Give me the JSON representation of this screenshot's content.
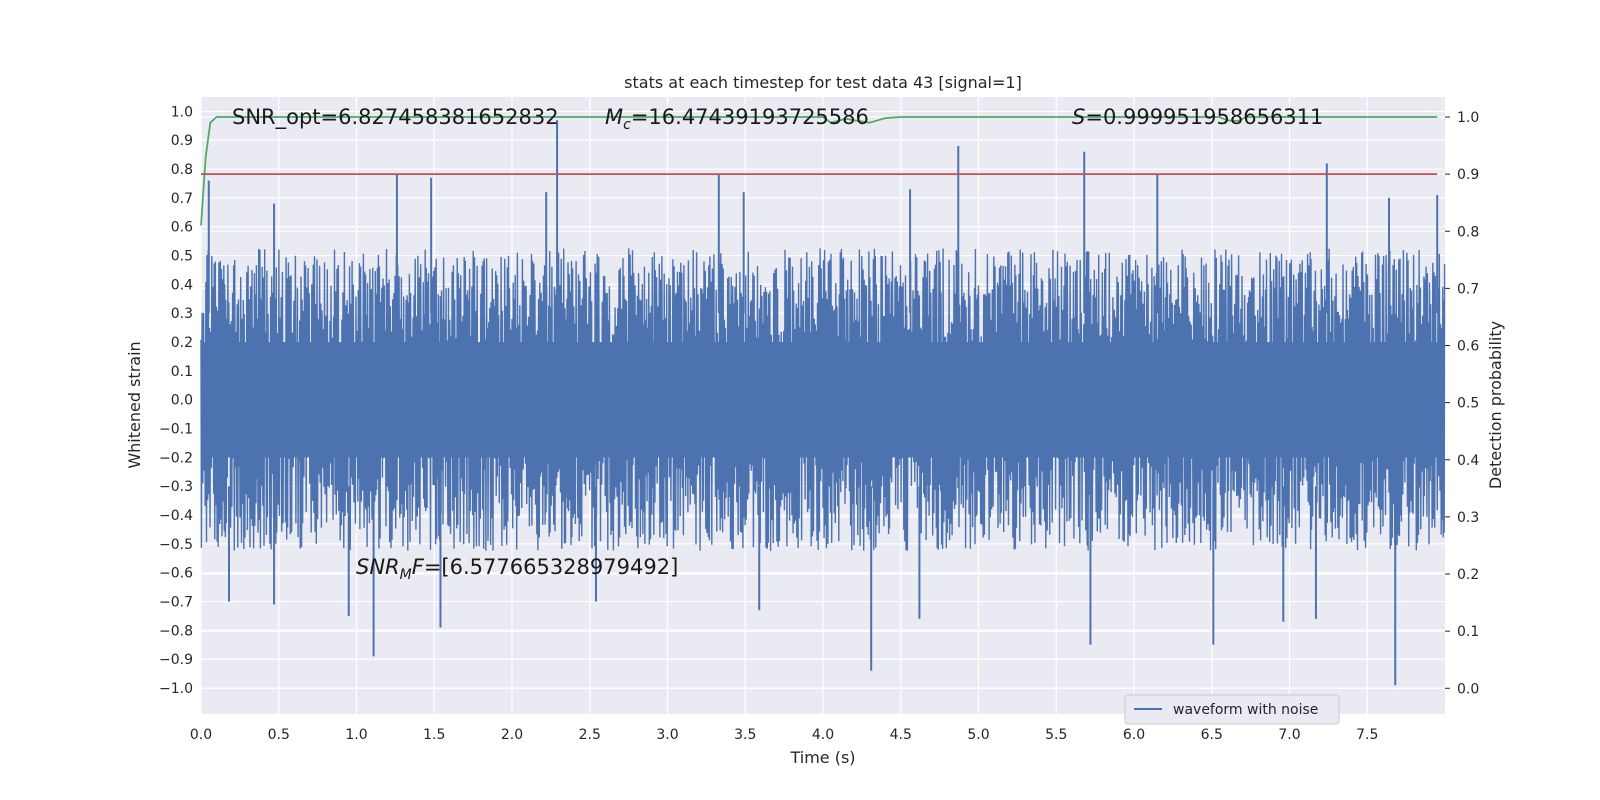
{
  "chart_data": {
    "type": "line",
    "title": "stats at each timestep for test data 43 [signal=1]",
    "xlabel": "Time (s)",
    "ylabel": "Whitened strain",
    "y2label": "Detection probability",
    "xlim": [
      0,
      8.0
    ],
    "ylim": [
      -1.09,
      1.05
    ],
    "y2lim": [
      -0.045,
      1.035
    ],
    "xticks": [
      "0.0",
      "0.5",
      "1.0",
      "1.5",
      "2.0",
      "2.5",
      "3.0",
      "3.5",
      "4.0",
      "4.5",
      "5.0",
      "5.5",
      "6.0",
      "6.5",
      "7.0",
      "7.5"
    ],
    "yticks": [
      "1.0",
      "0.9",
      "0.8",
      "0.7",
      "0.6",
      "0.5",
      "0.4",
      "0.3",
      "0.2",
      "0.1",
      "0.0",
      "−0.1",
      "−0.2",
      "−0.3",
      "−0.4",
      "−0.5",
      "−0.6",
      "−0.7",
      "−0.8",
      "−0.9",
      "−1.0"
    ],
    "y2ticks": [
      "1.0",
      "0.9",
      "0.8",
      "0.7",
      "0.6",
      "0.5",
      "0.4",
      "0.3",
      "0.2",
      "0.1",
      "0.0"
    ],
    "grid": true,
    "legend_position": "bottom-right",
    "series": [
      {
        "name": "waveform with noise",
        "axis": "left",
        "color": "#4c72b0",
        "envelope": {
          "typical_upper": 0.42,
          "typical_lower": -0.42,
          "x_start": 0.0,
          "x_end": 8.0
        },
        "peaks": [
          {
            "x": 0.05,
            "y": 0.76
          },
          {
            "x": 0.47,
            "y": 0.68
          },
          {
            "x": 1.26,
            "y": 0.78
          },
          {
            "x": 1.48,
            "y": 0.77
          },
          {
            "x": 2.29,
            "y": 0.97
          },
          {
            "x": 2.22,
            "y": 0.72
          },
          {
            "x": 3.33,
            "y": 0.78
          },
          {
            "x": 3.49,
            "y": 0.72
          },
          {
            "x": 4.56,
            "y": 0.73
          },
          {
            "x": 4.87,
            "y": 0.88
          },
          {
            "x": 5.68,
            "y": 0.86
          },
          {
            "x": 6.15,
            "y": 0.78
          },
          {
            "x": 7.24,
            "y": 0.82
          },
          {
            "x": 7.64,
            "y": 0.7
          },
          {
            "x": 7.95,
            "y": 0.71
          }
        ],
        "troughs": [
          {
            "x": 0.18,
            "y": -0.7
          },
          {
            "x": 0.47,
            "y": -0.71
          },
          {
            "x": 0.95,
            "y": -0.75
          },
          {
            "x": 1.11,
            "y": -0.89
          },
          {
            "x": 1.54,
            "y": -0.79
          },
          {
            "x": 2.54,
            "y": -0.7
          },
          {
            "x": 3.59,
            "y": -0.73
          },
          {
            "x": 4.31,
            "y": -0.94
          },
          {
            "x": 4.62,
            "y": -0.76
          },
          {
            "x": 5.72,
            "y": -0.85
          },
          {
            "x": 6.51,
            "y": -0.85
          },
          {
            "x": 6.96,
            "y": -0.77
          },
          {
            "x": 7.17,
            "y": -0.76
          },
          {
            "x": 7.68,
            "y": -0.99
          }
        ]
      },
      {
        "name": "",
        "axis": "right",
        "color": "#55a868",
        "x": [
          0.0,
          0.03,
          0.06,
          0.1,
          0.15,
          4.0,
          4.05,
          4.15,
          4.2,
          4.3,
          4.4,
          4.5,
          6.55,
          6.6,
          6.67,
          6.72,
          6.8,
          7.95
        ],
        "y": [
          0.81,
          0.93,
          0.99,
          1.0,
          1.0,
          1.0,
          0.99,
          0.997,
          0.994,
          0.99,
          0.998,
          1.0,
          1.0,
          0.994,
          0.993,
          1.0,
          1.0,
          1.0
        ]
      },
      {
        "name": "",
        "axis": "right",
        "color": "#c44e52",
        "x": [
          0.0,
          7.95
        ],
        "y": [
          0.9,
          0.9
        ]
      }
    ],
    "annotations": {
      "snr_opt": "SNR_opt=6.827458381652832",
      "mc_symbol": "M",
      "mc_sub": "c",
      "mc_value": "=16.47439193725586",
      "s_symbol": "S",
      "s_value": "=0.999951958656311",
      "snr_mf_symbol": "SNR",
      "snr_mf_sub": "M",
      "snr_mf_symbol2": "F",
      "snr_mf_value": "=[6.577665328979492]"
    }
  },
  "colors": {
    "plot_background": "#eaeaf2",
    "grid": "#ffffff",
    "text": "#262626"
  }
}
